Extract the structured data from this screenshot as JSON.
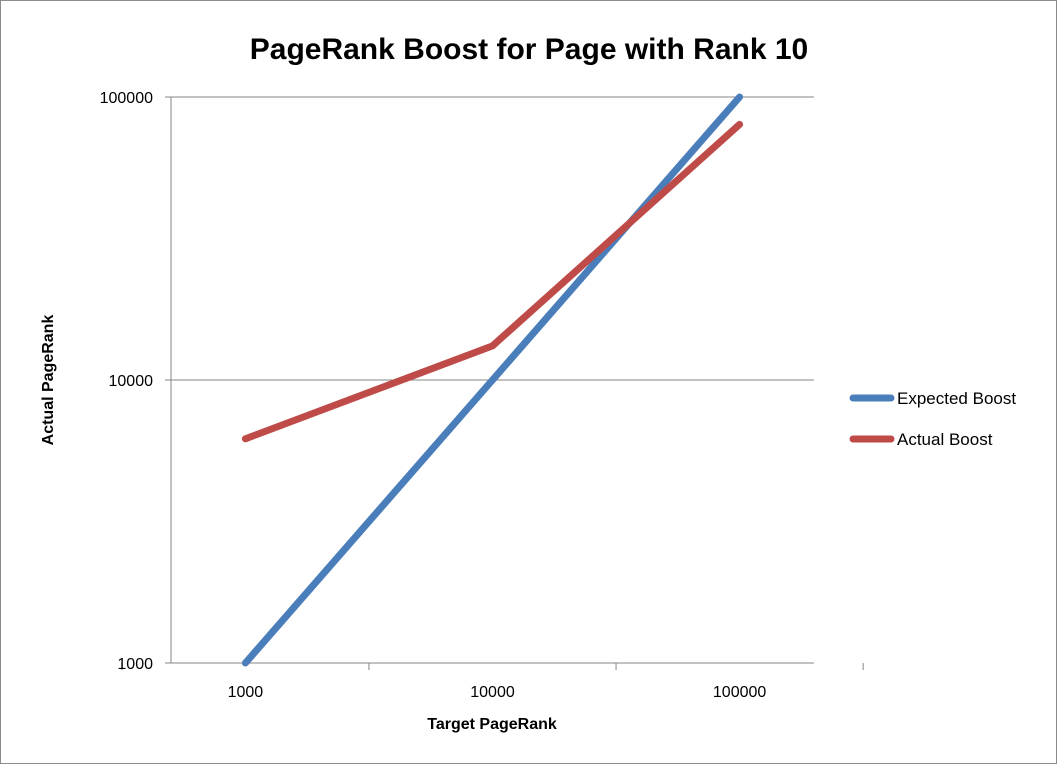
{
  "chart_data": {
    "type": "line",
    "title": "PageRank Boost for Page with Rank 10",
    "xlabel": "Target PageRank",
    "ylabel": "Actual PageRank",
    "x_scale": "log",
    "y_scale": "log",
    "xlim": [
      500,
      200000
    ],
    "ylim": [
      1000,
      100000
    ],
    "x_ticks": [
      "1000",
      "10000",
      "100000"
    ],
    "y_ticks": [
      "1000",
      "10000",
      "100000"
    ],
    "grid": "horizontal",
    "legend": "right",
    "x": [
      1000,
      10000,
      100000
    ],
    "series": [
      {
        "name": "Expected Boost",
        "color": "#4a7ebb",
        "values": [
          1000,
          10000,
          100000
        ]
      },
      {
        "name": "Actual Boost",
        "color": "#be4b48",
        "values": [
          6200,
          13200,
          80000
        ]
      }
    ]
  }
}
